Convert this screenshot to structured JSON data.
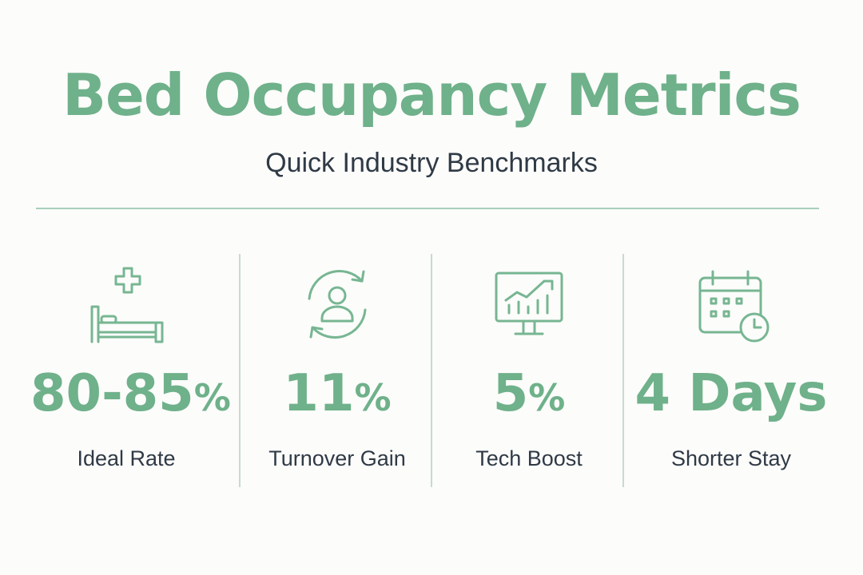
{
  "header": {
    "title": "Bed Occupancy Metrics",
    "subtitle": "Quick Industry Benchmarks"
  },
  "colors": {
    "accent": "#6fb18a",
    "text": "#2f3a45",
    "divider": "#a9cfba"
  },
  "metrics": [
    {
      "icon": "hospital-bed-icon",
      "value": "80-85",
      "unit": "%",
      "label": "Ideal Rate"
    },
    {
      "icon": "patient-turnover-icon",
      "value": "11",
      "unit": "%",
      "label": "Turnover Gain"
    },
    {
      "icon": "monitor-chart-icon",
      "value": "5",
      "unit": "%",
      "label": "Tech Boost"
    },
    {
      "icon": "calendar-clock-icon",
      "value": "4 Days",
      "unit": "",
      "label": "Shorter Stay"
    }
  ]
}
